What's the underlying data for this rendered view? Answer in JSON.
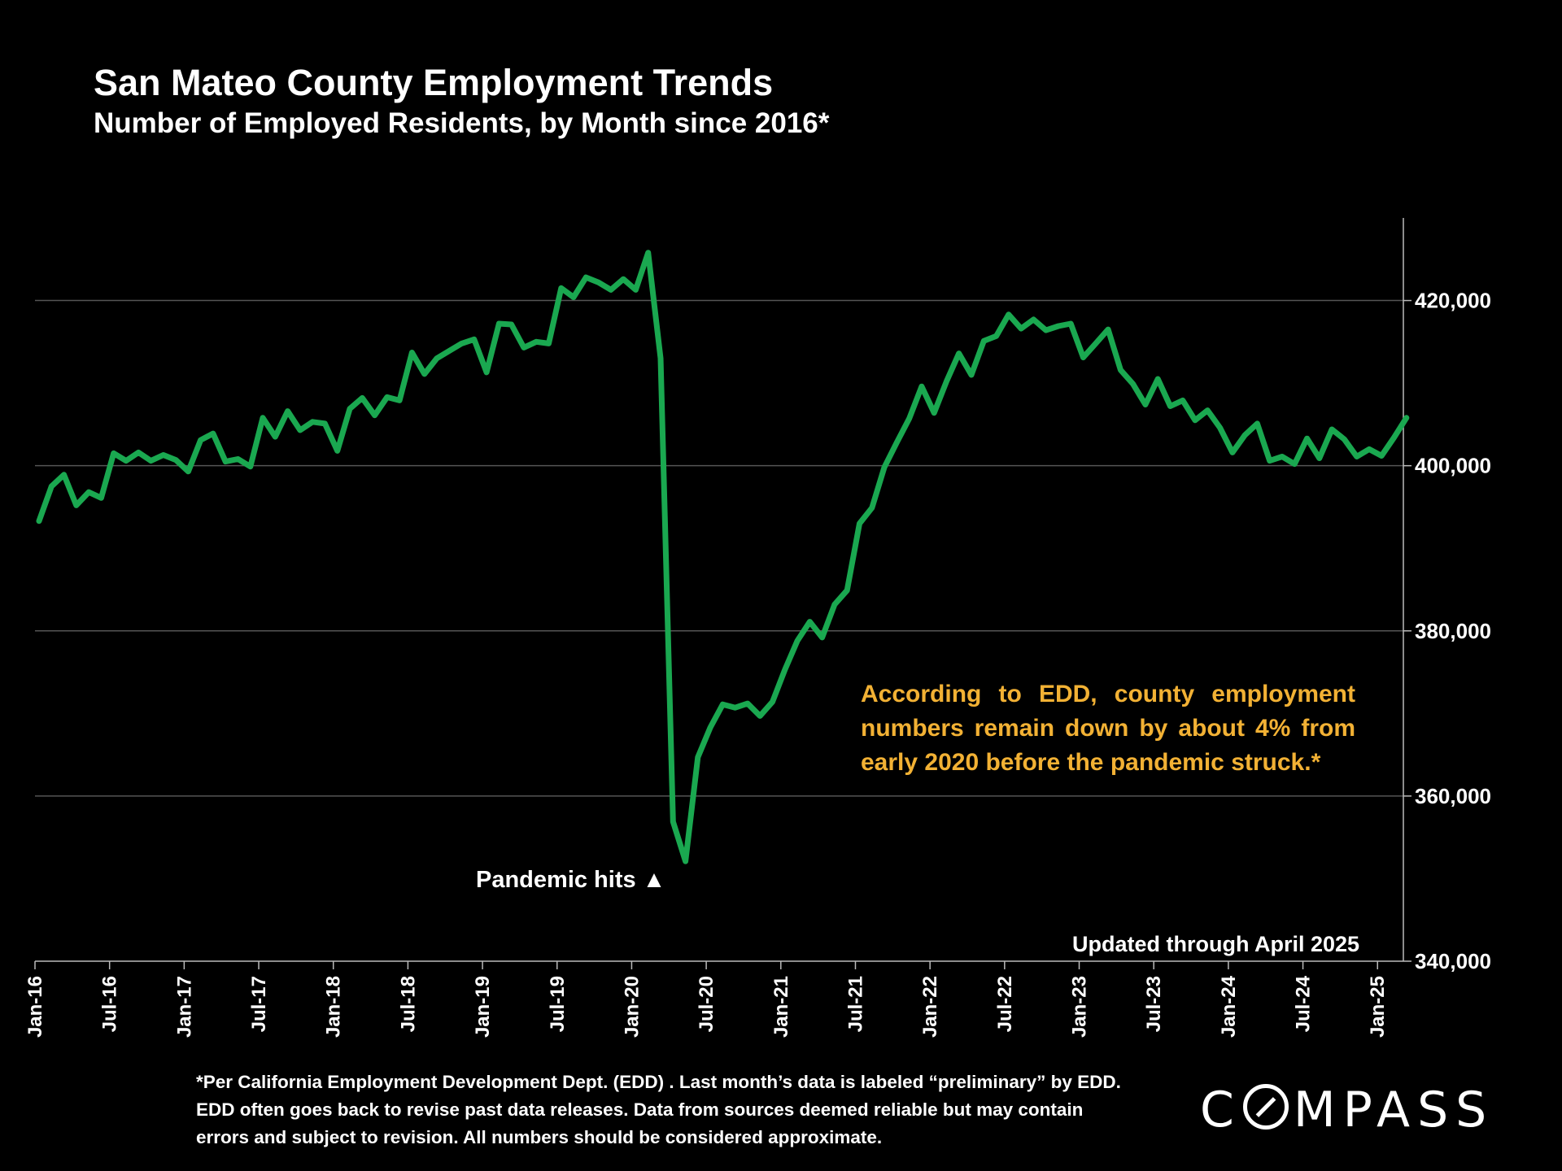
{
  "colors": {
    "background": "#000000",
    "line": "#1aa850",
    "annotation": "#f2b134",
    "grid": "#555555"
  },
  "chart_data": {
    "type": "line",
    "title": "San Mateo County Employment Trends",
    "subtitle": "Number of Employed Residents, by Month since 2016*",
    "ylim": [
      340000,
      430000
    ],
    "yticks": [
      340000,
      360000,
      380000,
      400000,
      420000
    ],
    "ytick_labels": [
      "340,000",
      "360,000",
      "380,000",
      "400,000",
      "420,000"
    ],
    "x_tick_labels": [
      "Jan-16",
      "Jul-16",
      "Jan-17",
      "Jul-17",
      "Jan-18",
      "Jul-18",
      "Jan-19",
      "Jul-19",
      "Jan-20",
      "Jul-20",
      "Jan-21",
      "Jul-21",
      "Jan-22",
      "Jul-22",
      "Jan-23",
      "Jul-23",
      "Jan-24",
      "Jul-24",
      "Jan-25"
    ],
    "x_start": "Jan-16",
    "grid": "horizontal",
    "series": [
      {
        "values": [
          393300,
          397500,
          398900,
          395200,
          396800,
          396100,
          401500,
          400600,
          401600,
          400600,
          401300,
          400700,
          399300,
          403100,
          403900,
          400500,
          400800,
          399900,
          405800,
          403500,
          406600,
          404300,
          405300,
          405100,
          401800,
          406900,
          408200,
          406100,
          408300,
          407900,
          413700,
          411100,
          413000,
          413900,
          414800,
          415300,
          411300,
          417200,
          417100,
          414300,
          415000,
          414800,
          421500,
          420400,
          422800,
          422200,
          421300,
          422600,
          421300,
          425800,
          413000,
          356900,
          352100,
          364700,
          368300,
          371100,
          370700,
          371200,
          369700,
          371400,
          375300,
          378800,
          381100,
          379200,
          383200,
          384900,
          393000,
          394900,
          399800,
          402800,
          405700,
          409600,
          406400,
          410200,
          413600,
          411000,
          415100,
          415700,
          418300,
          416600,
          417700,
          416400,
          416900,
          417200,
          413100,
          414800,
          416500,
          411600,
          409900,
          407400,
          410500,
          407200,
          407900,
          405500,
          406700,
          404600,
          401600,
          403700,
          405100,
          400600,
          401100,
          400200,
          403300,
          400900,
          404400,
          403200,
          401100,
          402000,
          401200,
          403400,
          405800
        ]
      }
    ]
  },
  "annotation": "According to EDD, county employment numbers remain down by about 4% from early 2020 before the pandemic struck.*",
  "pandemic_label": "Pandemic hits ▲",
  "updated_label": "Updated through April 2025",
  "footnote": "*Per California Employment Development Dept. (EDD) . Last month’s data is labeled “preliminary” by EDD. EDD often goes back to revise past data releases. Data from sources deemed reliable but may contain errors and subject to revision. All numbers should be considered approximate.",
  "logo": {
    "before": "C",
    "after": "MPASS"
  }
}
